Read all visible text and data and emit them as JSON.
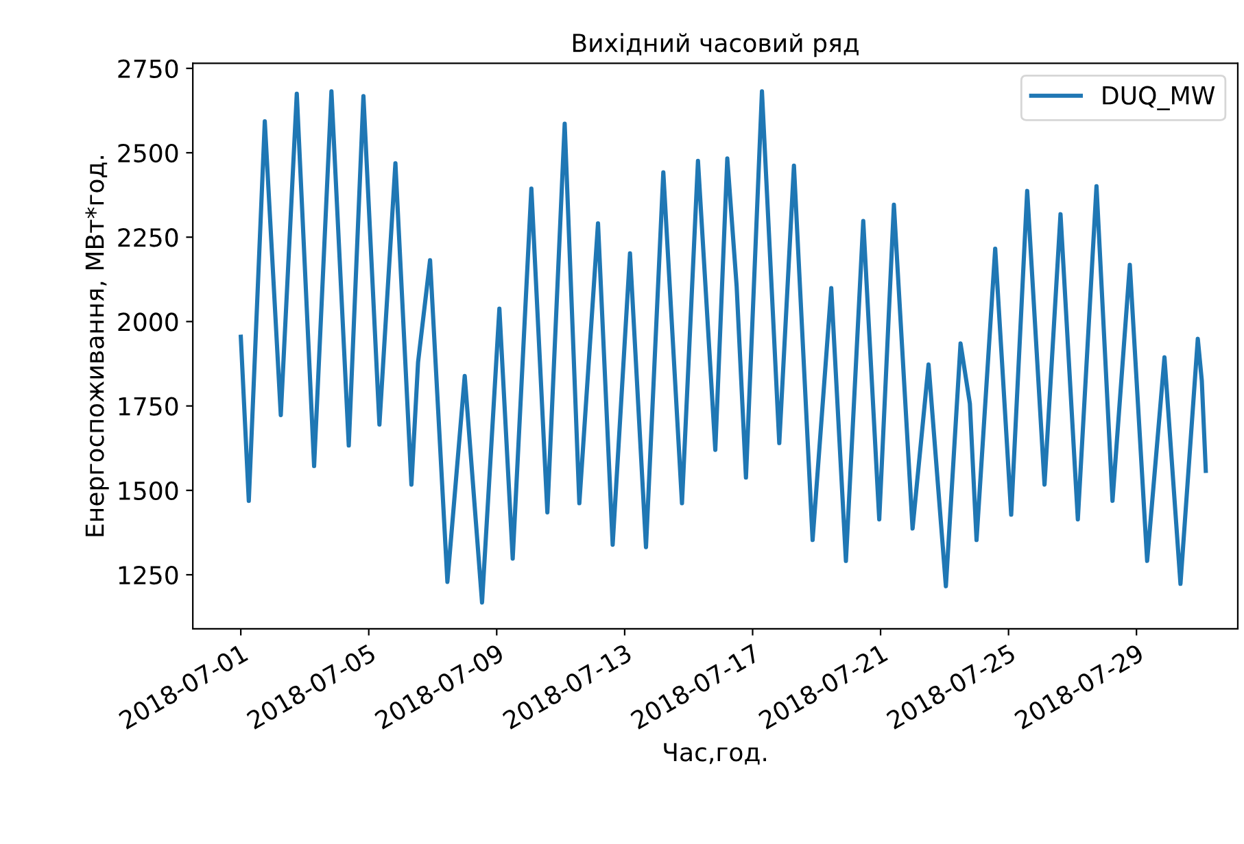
{
  "chart_data": {
    "type": "line",
    "title": "Вихідний часовий ряд",
    "xlabel": "Час,год.",
    "ylabel": "Енергоспоживання, МВт*год.",
    "xlim": [
      "2018-06-29T12:00",
      "2018-08-01T04:00"
    ],
    "xticks": [
      "2018-07-01",
      "2018-07-05",
      "2018-07-09",
      "2018-07-13",
      "2018-07-17",
      "2018-07-21",
      "2018-07-25",
      "2018-07-29"
    ],
    "ylim": [
      1090,
      2765
    ],
    "yticks": [
      1250,
      1500,
      1750,
      2000,
      2250,
      2500,
      2750
    ],
    "grid": false,
    "legend": "top right",
    "series": [
      {
        "name": "DUQ_MW",
        "color": "#1f77b4",
        "x": [
          "2018-07-01T00:00",
          "2018-07-01T06:00",
          "2018-07-01T18:00",
          "2018-07-02T06:00",
          "2018-07-02T18:00",
          "2018-07-03T07:00",
          "2018-07-03T20:00",
          "2018-07-04T09:00",
          "2018-07-04T20:00",
          "2018-07-05T08:00",
          "2018-07-05T20:00",
          "2018-07-06T08:00",
          "2018-07-06T13:00",
          "2018-07-06T22:00",
          "2018-07-07T11:00",
          "2018-07-08T00:00",
          "2018-07-08T13:00",
          "2018-07-09T02:00",
          "2018-07-09T12:00",
          "2018-07-10T02:00",
          "2018-07-10T14:00",
          "2018-07-11T03:00",
          "2018-07-11T14:00",
          "2018-07-12T04:00",
          "2018-07-12T15:00",
          "2018-07-13T04:00",
          "2018-07-13T16:00",
          "2018-07-14T05:00",
          "2018-07-14T19:00",
          "2018-07-15T07:00",
          "2018-07-15T20:00",
          "2018-07-16T05:00",
          "2018-07-16T12:00",
          "2018-07-16T19:00",
          "2018-07-17T07:00",
          "2018-07-17T20:00",
          "2018-07-18T07:00",
          "2018-07-18T21:00",
          "2018-07-19T11:00",
          "2018-07-19T22:00",
          "2018-07-20T11:00",
          "2018-07-20T23:00",
          "2018-07-21T10:00",
          "2018-07-22T00:00",
          "2018-07-22T12:00",
          "2018-07-23T01:00",
          "2018-07-23T12:00",
          "2018-07-23T19:00",
          "2018-07-24T00:00",
          "2018-07-24T14:00",
          "2018-07-25T02:00",
          "2018-07-25T14:00",
          "2018-07-26T03:00",
          "2018-07-26T15:00",
          "2018-07-27T04:00",
          "2018-07-27T18:00",
          "2018-07-28T06:00",
          "2018-07-28T19:00",
          "2018-07-29T08:00",
          "2018-07-29T21:00",
          "2018-07-30T09:00",
          "2018-07-30T22:00",
          "2018-07-31T01:00",
          "2018-07-31T04:00"
        ],
        "values": [
          1955,
          1469,
          2593,
          1723,
          2675,
          1572,
          2682,
          1633,
          2668,
          1695,
          2469,
          1517,
          1880,
          2182,
          1229,
          1839,
          1168,
          2038,
          1298,
          2394,
          1435,
          2586,
          1462,
          2291,
          1339,
          2202,
          1332,
          2442,
          1462,
          2476,
          1620,
          2483,
          2106,
          1538,
          2682,
          1640,
          2462,
          1353,
          2099,
          1291,
          2298,
          1414,
          2346,
          1387,
          1873,
          1216,
          1935,
          1757,
          1353,
          2216,
          1428,
          2387,
          1517,
          2318,
          1414,
          2401,
          1469,
          2168,
          1291,
          1894,
          1223,
          1949,
          1825,
          1558
        ]
      }
    ]
  }
}
